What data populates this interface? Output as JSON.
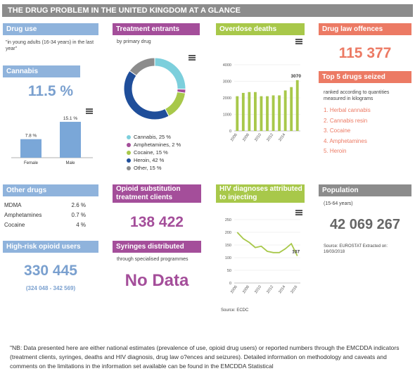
{
  "banner": "THE DRUG PROBLEM IN THE UNITED KINGDOM AT A GLANCE",
  "drug_use": {
    "title": "Drug use",
    "subtitle": "\"in young adults (16-34 years) in the last year\"",
    "cannabis_label": "Cannabis",
    "cannabis_value": "11.5 %"
  },
  "treatment": {
    "title": "Treatment entrants",
    "subtitle": "by primary drug",
    "legend": [
      {
        "label": "Cannabis, 25 %",
        "color": "#7ccfdc"
      },
      {
        "label": "Amphetamines, 2 %",
        "color": "#a44e9a"
      },
      {
        "label": "Cocaine, 15 %",
        "color": "#a8c84a"
      },
      {
        "label": "Heroin, 42 %",
        "color": "#1f4e9a"
      },
      {
        "label": "Other, 15 %",
        "color": "#8c8c8c"
      }
    ]
  },
  "overdose": {
    "title": "Overdose deaths"
  },
  "law": {
    "title": "Drug law offences",
    "value": "115 377"
  },
  "top5": {
    "title": "Top 5 drugs seized",
    "subtitle": "ranked according to quantities measured in kilograms",
    "items": [
      "1. Herbal cannabis",
      "2. Cannabis resin",
      "3. Cocaine",
      "4. Amphetamines",
      "5. Heroin"
    ]
  },
  "other_drugs": {
    "title": "Other drugs",
    "rows": [
      {
        "name": "MDMA",
        "value": "2.6 %"
      },
      {
        "name": "Amphetamines",
        "value": "0.7 %"
      },
      {
        "name": "Cocaine",
        "value": "4 %"
      }
    ]
  },
  "ost": {
    "title_line1": "Opioid substitution",
    "title_line2": "treatment clients",
    "value": "138 422"
  },
  "hiv": {
    "title_line1": "HIV diagnoses attributed",
    "title_line2": "to injecting",
    "source": "Source: ECDC"
  },
  "population": {
    "title": "Population",
    "subtitle": "(15-64 years)",
    "value": "42 069 267",
    "source": "Source: EUROSTAT Extracted on: 16/03/2018"
  },
  "high_risk": {
    "title": "High-risk opioid users",
    "value": "330 445",
    "range": "(324 048 - 342 569)"
  },
  "syringes": {
    "title": "Syringes distributed",
    "subtitle": "through specialised programmes",
    "value": "No Data"
  },
  "note": "\"NB: Data presented here are either national estimates (prevalence of use, opioid drug users) or reported numbers through the EMCDDA indicators (treatment clients, syringes, deaths and HIV diagnosis, drug law o?ences and seizures). Detailed information on methodology and caveats and comments on the limitations in the information set available can be found in the EMCDDA Statistical",
  "chart_data": [
    {
      "type": "bar",
      "categories": [
        "Female",
        "Male"
      ],
      "values": [
        7.8,
        15.1
      ],
      "value_labels": [
        "7.8 %",
        "15.1 %"
      ],
      "ylim": [
        0,
        16
      ],
      "color": "#7aa7d8"
    },
    {
      "type": "pie",
      "categories": [
        "Cannabis",
        "Amphetamines",
        "Cocaine",
        "Heroin",
        "Other"
      ],
      "values": [
        25,
        2,
        15,
        42,
        15
      ],
      "colors": [
        "#7ccfdc",
        "#a44e9a",
        "#a8c84a",
        "#1f4e9a",
        "#8c8c8c"
      ],
      "donut": true
    },
    {
      "type": "bar",
      "x": [
        2006,
        2007,
        2008,
        2009,
        2010,
        2011,
        2012,
        2013,
        2014,
        2015,
        2016
      ],
      "x_ticks": [
        "2006",
        "2008",
        "2010",
        "2012",
        "2014"
      ],
      "values": [
        2100,
        2300,
        2350,
        2350,
        2100,
        2100,
        2150,
        2150,
        2450,
        2650,
        3070
      ],
      "last_label": "3070",
      "y_ticks": [
        0,
        1000,
        2000,
        3000,
        4000
      ],
      "ylim": [
        0,
        4000
      ],
      "grid": true,
      "color": "#a8c84a"
    },
    {
      "type": "line",
      "x": [
        2006,
        2007,
        2008,
        2009,
        2010,
        2011,
        2012,
        2013,
        2014,
        2015,
        2016
      ],
      "x_ticks": [
        "2006",
        "2008",
        "2010",
        "2012",
        "2014",
        "2016"
      ],
      "values": [
        200,
        175,
        160,
        140,
        145,
        125,
        120,
        120,
        135,
        155,
        107
      ],
      "last_label": "107",
      "y_ticks": [
        0,
        50,
        100,
        150,
        200,
        250
      ],
      "ylim": [
        0,
        250
      ],
      "grid": true,
      "color": "#a8c84a"
    }
  ]
}
